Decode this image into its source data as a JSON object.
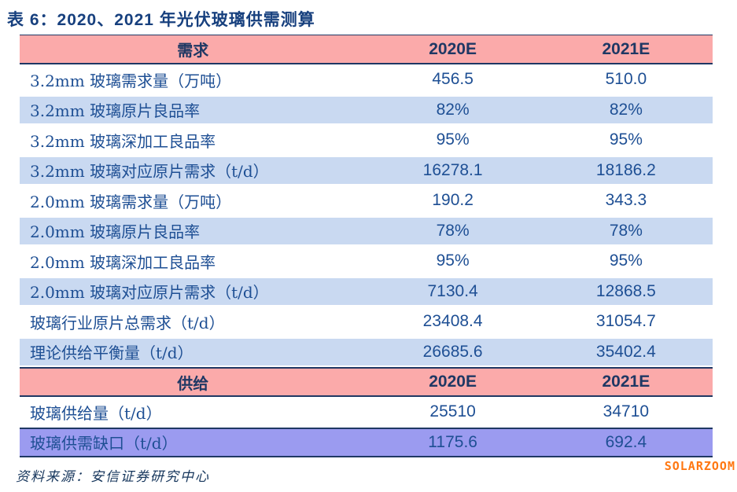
{
  "title": "表 6：2020、2021 年光伏玻璃供需测算",
  "table": {
    "sections": [
      {
        "header": {
          "label": "需求",
          "col2020": "2020E",
          "col2021": "2021E"
        },
        "rows": [
          {
            "label": "3.2mm 玻璃需求量（万吨）",
            "v2020": "456.5",
            "v2021": "510.0"
          },
          {
            "label": "3.2mm 玻璃原片良品率",
            "v2020": "82%",
            "v2021": "82%"
          },
          {
            "label": "3.2mm 玻璃深加工良品率",
            "v2020": "95%",
            "v2021": "95%"
          },
          {
            "label": "3.2mm 玻璃对应原片需求（t/d）",
            "v2020": "16278.1",
            "v2021": "18186.2"
          },
          {
            "label": "2.0mm 玻璃需求量（万吨）",
            "v2020": "190.2",
            "v2021": "343.3"
          },
          {
            "label": "2.0mm 玻璃原片良品率",
            "v2020": "78%",
            "v2021": "78%"
          },
          {
            "label": "2.0mm 玻璃深加工良品率",
            "v2020": "95%",
            "v2021": "95%"
          },
          {
            "label": "2.0mm 玻璃对应原片需求（t/d）",
            "v2020": "7130.4",
            "v2021": "12868.5"
          },
          {
            "label": "玻璃行业原片总需求（t/d）",
            "v2020": "23408.4",
            "v2021": "31054.7"
          },
          {
            "label": "理论供给平衡量（t/d）",
            "v2020": "26685.6",
            "v2021": "35402.4"
          }
        ]
      },
      {
        "header": {
          "label": "供给",
          "col2020": "2020E",
          "col2021": "2021E"
        },
        "rows": [
          {
            "label": "玻璃供给量（t/d）",
            "v2020": "25510",
            "v2021": "34710"
          },
          {
            "label": "玻璃供需缺口（t/d）",
            "v2020": "1175.6",
            "v2021": "692.4",
            "highlight": true
          }
        ]
      }
    ]
  },
  "footer": {
    "source": "资料来源：安信证券研究中心"
  },
  "watermark": {
    "text": "SOLARZOOM"
  },
  "colors": {
    "header_bg": "#FBAAAA",
    "alt_row_bg": "#C9D9F1",
    "highlight_row_bg": "#9B9BF0",
    "border_navy": "#1F3864",
    "cell_text": "#1E4F94",
    "title_text": "#17407E",
    "watermark_orange": "#FF7711"
  }
}
